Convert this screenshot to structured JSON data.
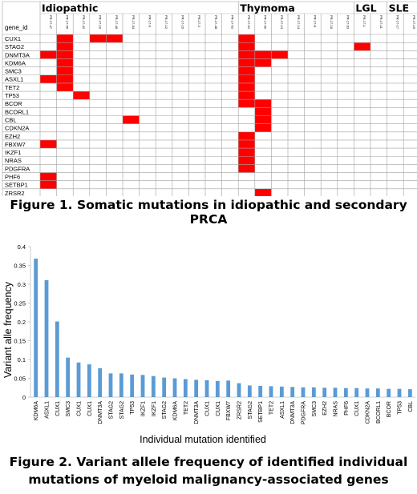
{
  "figure1": {
    "caption": "Figure 1. Somatic mutations in idiopathic and secondary PRCA",
    "colors": {
      "mutated": "#ff0000",
      "grid": "#a0a0a0"
    },
    "gene_col_header": "gene_id",
    "groups": [
      {
        "label": "Idiopathic",
        "start": 0,
        "end": 12
      },
      {
        "label": "Thymoma",
        "start": 12,
        "end": 19
      },
      {
        "label": "LGL",
        "start": 19,
        "end": 21
      },
      {
        "label": "SLE",
        "start": 21,
        "end": 23
      }
    ],
    "patients": [
      "PR-17-47",
      "PR-17-55",
      "PR-17-42",
      "PR-17-10",
      "PR-17-46",
      "PR-17-54",
      "PR-17-9",
      "PR-17-12",
      "PR-17-15",
      "PR-17-3",
      "PR-17-48",
      "PR-17-52",
      "PR-17-51",
      "PR-17-50",
      "PR-17-13",
      "PR-17-14",
      "PR-17-8",
      "PR-17-16",
      "PR-17-53",
      "PR-17-1",
      "PR-17-11",
      "PR-17-17",
      "PR-17-19"
    ],
    "genes": [
      "CUX1",
      "STAG2",
      "DNMT3A",
      "KDM6A",
      "SMC3",
      "ASXL1",
      "TET2",
      "TP53",
      "BCOR",
      "BCORL1",
      "CBL",
      "CDKN2A",
      "EZH2",
      "FBXW7",
      "IKZF1",
      "NRAS",
      "PDGFRA",
      "PHF6",
      "SETBP1",
      "ZRSR2"
    ],
    "mutations": [
      [
        1,
        3,
        4,
        12
      ],
      [
        1,
        12,
        19
      ],
      [
        0,
        1,
        12,
        13,
        14
      ],
      [
        1,
        12,
        13
      ],
      [
        1,
        12
      ],
      [
        0,
        1,
        12
      ],
      [
        1,
        12
      ],
      [
        2,
        12
      ],
      [
        12,
        13
      ],
      [
        13
      ],
      [
        5,
        13
      ],
      [
        13
      ],
      [
        12
      ],
      [
        0,
        12
      ],
      [
        12
      ],
      [
        12
      ],
      [
        12
      ],
      [
        0
      ],
      [
        0
      ],
      [
        13
      ]
    ]
  },
  "figure2": {
    "caption_line1": "Figure 2.  Variant allele frequency of identified individual",
    "caption_line2": "mutations of myeloid malignancy-associated genes",
    "chart_data": {
      "type": "bar",
      "xlabel": "Individual mutation identified",
      "ylabel": "Variant alle frequency",
      "ylim": [
        0,
        0.4
      ],
      "yticks": [
        0,
        0.05,
        0.1,
        0.15,
        0.2,
        0.25,
        0.3,
        0.35,
        0.4
      ],
      "bar_color": "#5b9bd5",
      "categories": [
        "KDM6A",
        "ASXL1",
        "CUX1",
        "SMC3",
        "CUX1",
        "CUX1",
        "DNMT3A",
        "STAG2",
        "STAG2",
        "TP53",
        "IKZF1",
        "IKZF1",
        "STAG2",
        "KDM6A",
        "TET2",
        "DNMT3A",
        "CUX1",
        "CUX1",
        "FBXW7",
        "ZRSR2",
        "STAG2",
        "SETBP1",
        "TET2",
        "ASXL1",
        "DNMT3A",
        "PDGFRA",
        "SMC3",
        "EZH2",
        "NRAS",
        "PHF6",
        "CUX1",
        "CDKN2A",
        "BCORL1",
        "BCOR",
        "TP53",
        "CBL"
      ],
      "values": [
        0.368,
        0.311,
        0.201,
        0.105,
        0.092,
        0.087,
        0.077,
        0.063,
        0.063,
        0.06,
        0.059,
        0.056,
        0.052,
        0.05,
        0.048,
        0.046,
        0.045,
        0.043,
        0.044,
        0.037,
        0.031,
        0.03,
        0.029,
        0.028,
        0.027,
        0.026,
        0.026,
        0.025,
        0.025,
        0.024,
        0.024,
        0.023,
        0.023,
        0.022,
        0.022,
        0.021
      ]
    }
  }
}
